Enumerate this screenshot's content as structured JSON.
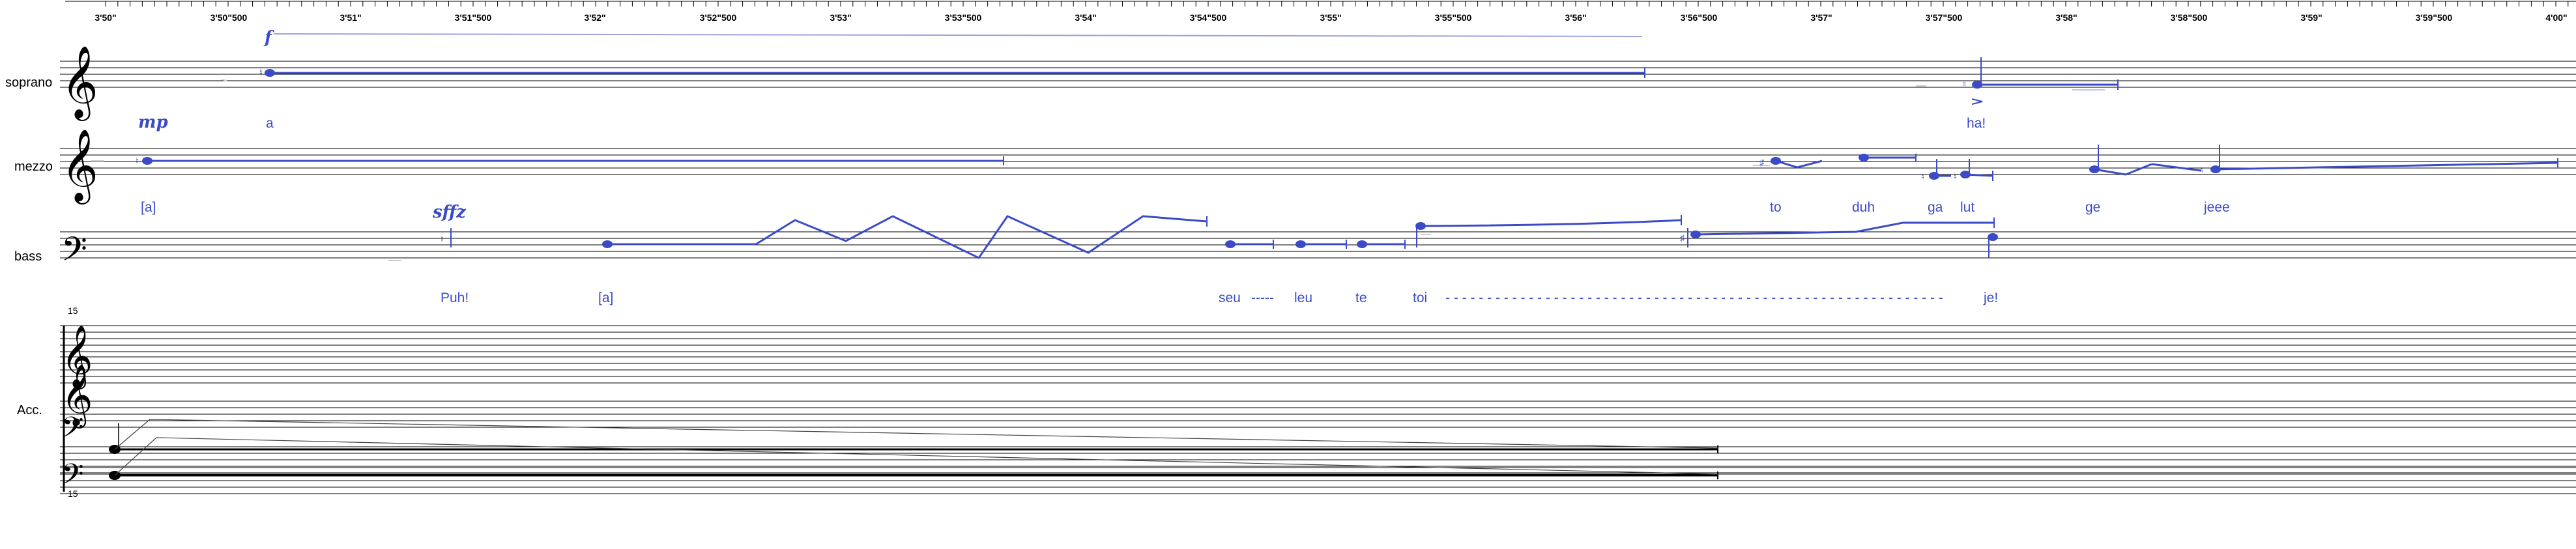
{
  "timeline": {
    "ticks": [
      "3'50\"",
      "3'50\"500",
      "3'51\"",
      "3'51\"500",
      "3'52\"",
      "3'52\"500",
      "3'53\"",
      "3'53\"500",
      "3'54\"",
      "3'54\"500",
      "3'55\"",
      "3'55\"500",
      "3'56\"",
      "3'56\"500",
      "3'57\"",
      "3'57\"500",
      "3'58\"",
      "3'58\"500",
      "3'59\"",
      "3'59\"500",
      "4'00\""
    ]
  },
  "staves": {
    "soprano": {
      "name": "soprano",
      "dynamics": [
        "f",
        "mp"
      ],
      "lyrics": [
        "a",
        "ha!"
      ]
    },
    "mezzo": {
      "name": "mezzo",
      "lyrics": [
        "[a]",
        "to",
        "duh",
        "ga",
        "lut",
        "ge",
        "jeee"
      ]
    },
    "bass": {
      "name": "bass",
      "dynamics": [
        "sffz"
      ],
      "lyrics": [
        "Puh!",
        "[a]",
        "seu",
        "-----",
        "leu",
        "te",
        "toi",
        "- - - - - - - - - - - - - - - - - - - - - - - - - - - - - - - - - - - - - - - - - - - - - - - - - - - - - - - - - - - -",
        "je!"
      ]
    },
    "acc": {
      "name": "Acc.",
      "ottava_top": "15",
      "ottava_bottom": "15"
    }
  },
  "colors": {
    "notes": "#3b4bc8",
    "staff": "#000000",
    "light": "#9aa3e0"
  }
}
